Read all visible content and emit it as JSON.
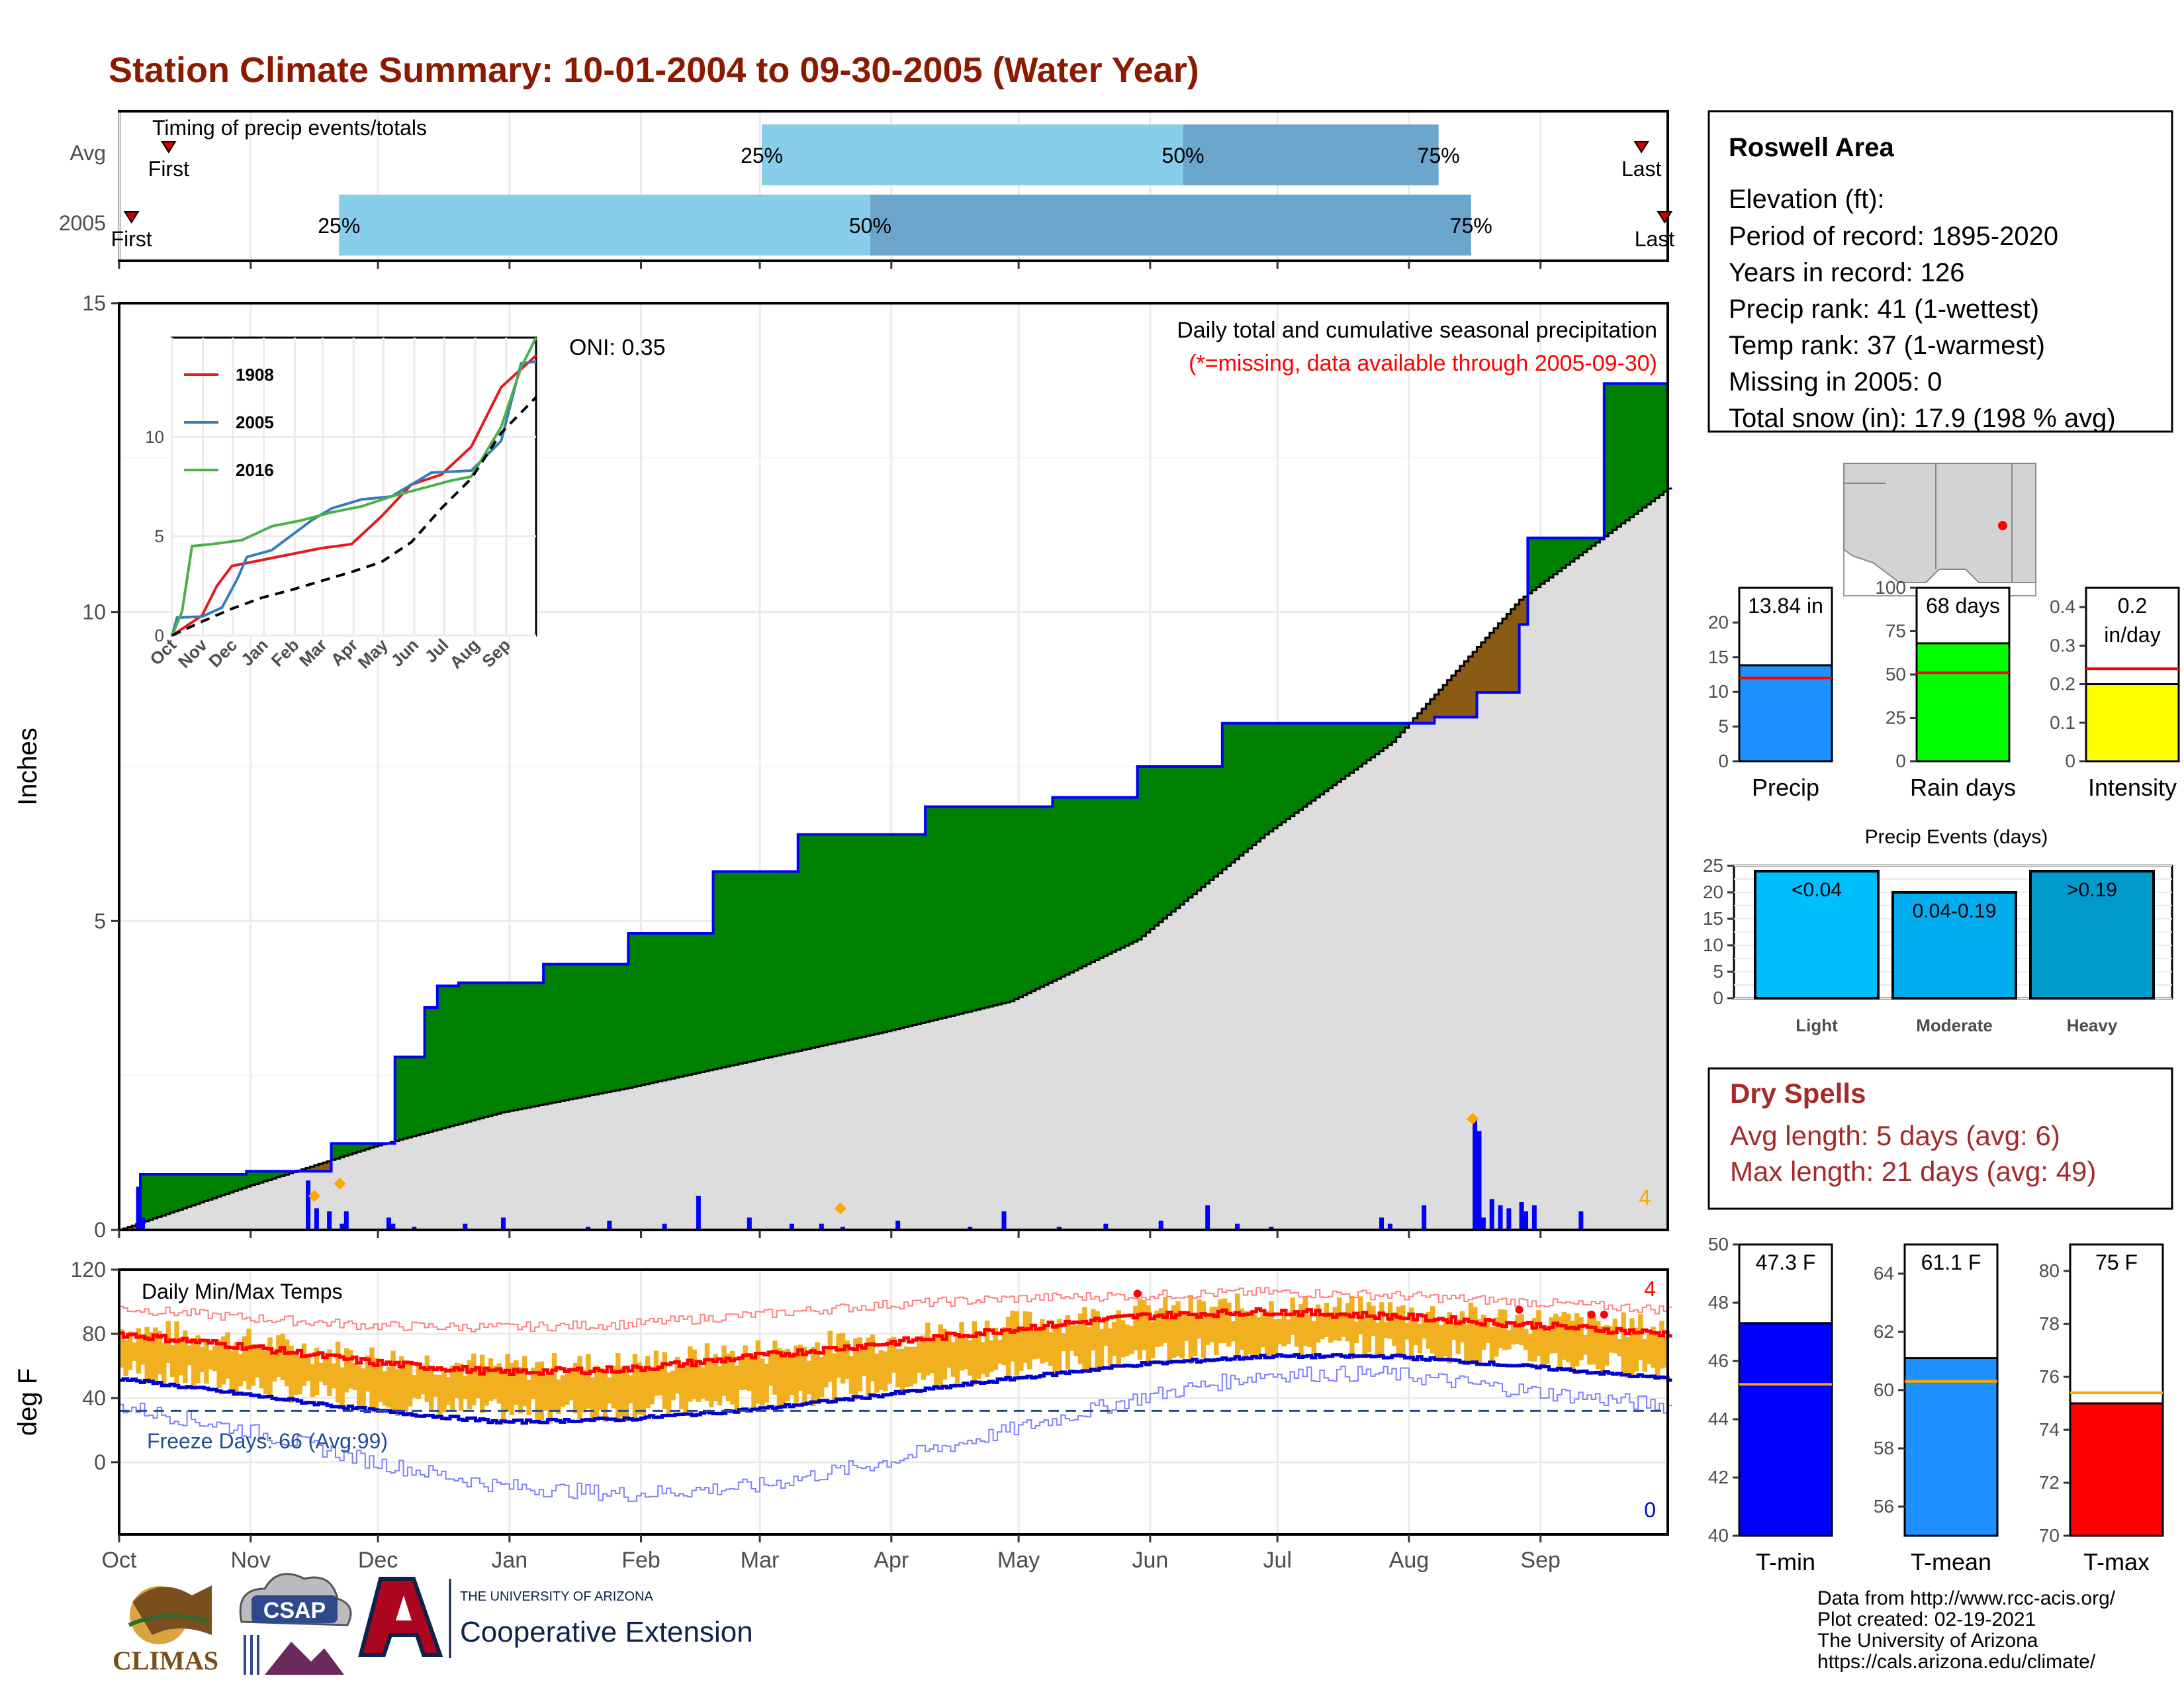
{
  "title": "Station Climate Summary: 10-01-2004 to 09-30-2005 (Water Year)",
  "colors": {
    "title": "#8B1A00",
    "precip_fill": "#008000",
    "deficit_fill": "#8B5A14",
    "avg_fill": "#dddddd",
    "cum_line": "#0000ff",
    "daily_bar": "#0000ff",
    "temp_bar": "#F0B020",
    "max_line": "#ff0000",
    "min_line": "#0000cc",
    "dry_spell_text": "#A52A2A",
    "timing_light": "#87CEEB",
    "timing_dark": "#6CA6CD"
  },
  "timing": {
    "title": "Timing of precip events/totals",
    "rows": [
      {
        "label": "Avg",
        "first": "First",
        "last": "Last",
        "p25": 0.415,
        "p50": 0.687,
        "p75": 0.852,
        "first_pos": 0.032,
        "last_pos": 0.983
      },
      {
        "label": "2005",
        "first": "First",
        "last": "Last",
        "p25": 0.142,
        "p50": 0.485,
        "p75": 0.873,
        "first_pos": 0.008,
        "last_pos": 0.998
      }
    ],
    "pct_labels": [
      "25%",
      "50%",
      "75%"
    ]
  },
  "info": {
    "station": "Roswell Area",
    "lines": [
      "Elevation (ft):",
      "Period of record: 1895-2020",
      "Years in record: 126",
      "Precip rank: 41 (1-wettest)",
      "Temp rank: 37 (1-warmest)",
      "Missing in 2005: 0",
      "Total snow (in): 17.9 (198 % avg)"
    ]
  },
  "main_chart": {
    "ylabel": "Inches",
    "header": "Daily total and cumulative seasonal precipitation",
    "missing_note": "(*=missing, data available through 2005-09-30)",
    "oni": "ONI: 0.35",
    "count_label": "4",
    "ylim": [
      0,
      15
    ],
    "yticks": [
      0,
      5,
      10,
      15
    ]
  },
  "chart_data": [
    {
      "type": "area",
      "name": "cumulative-precip",
      "x_unit": "day of water year (0 = Oct 1)",
      "xlim": [
        0,
        365
      ],
      "ylim": [
        0,
        15
      ],
      "series": [
        {
          "name": "2005 cumulative",
          "x": [
            0,
            5,
            30,
            50,
            65,
            72,
            75,
            80,
            85,
            100,
            120,
            140,
            160,
            190,
            220,
            240,
            260,
            290,
            310,
            320,
            330,
            332,
            350,
            365
          ],
          "y": [
            0,
            0.9,
            0.95,
            1.4,
            2.8,
            3.6,
            3.95,
            4.0,
            4.0,
            4.3,
            4.8,
            5.8,
            6.4,
            6.85,
            7.0,
            7.5,
            8.2,
            8.2,
            8.3,
            8.7,
            9.8,
            11.2,
            13.7,
            13.8
          ]
        },
        {
          "name": "Average cumulative",
          "x": [
            0,
            30,
            60,
            90,
            120,
            150,
            180,
            210,
            240,
            270,
            300,
            330,
            365
          ],
          "y": [
            0,
            0.7,
            1.35,
            1.9,
            2.3,
            2.75,
            3.2,
            3.7,
            4.7,
            6.4,
            7.9,
            10.2,
            12.0
          ]
        }
      ]
    },
    {
      "type": "bar",
      "name": "daily-precip",
      "x": [
        4,
        5,
        44,
        46,
        49,
        52,
        53,
        63,
        64,
        69,
        81,
        90,
        110,
        115,
        128,
        136,
        148,
        158,
        165,
        170,
        183,
        200,
        208,
        221,
        232,
        245,
        256,
        263,
        271,
        297,
        299,
        307,
        319,
        320,
        321,
        323,
        325,
        327,
        330,
        331,
        333,
        344
      ],
      "values": [
        0.7,
        0.2,
        0.8,
        0.35,
        0.3,
        0.1,
        0.3,
        0.2,
        0.1,
        0.05,
        0.1,
        0.2,
        0.05,
        0.15,
        0.1,
        0.55,
        0.2,
        0.1,
        0.1,
        0.05,
        0.15,
        0.05,
        0.3,
        0.05,
        0.1,
        0.15,
        0.4,
        0.1,
        0.05,
        0.2,
        0.1,
        0.4,
        1.8,
        1.6,
        0.2,
        0.5,
        0.4,
        0.35,
        0.45,
        0.3,
        0.4,
        0.3
      ]
    },
    {
      "type": "line",
      "name": "inset-cumulative",
      "xtick_labels": [
        "Oct",
        "Nov",
        "Dec",
        "Jan",
        "Feb",
        "Mar",
        "Apr",
        "May",
        "Jun",
        "Jul",
        "Aug",
        "Sep"
      ],
      "yticks": [
        0,
        5,
        10
      ],
      "ylim": [
        0,
        15
      ],
      "series": [
        {
          "name": "1908",
          "x": [
            0,
            30,
            45,
            60,
            90,
            120,
            150,
            180,
            210,
            240,
            270,
            300,
            330,
            365
          ],
          "y": [
            0,
            1,
            2.5,
            3.5,
            3.8,
            4.1,
            4.4,
            4.6,
            6.0,
            7.6,
            8.1,
            9.5,
            12.5,
            14.1
          ]
        },
        {
          "name": "2005",
          "x": [
            0,
            5,
            30,
            50,
            65,
            75,
            100,
            140,
            160,
            190,
            220,
            260,
            300,
            330,
            350,
            365
          ],
          "y": [
            0,
            0.9,
            0.95,
            1.4,
            2.8,
            3.95,
            4.3,
            5.8,
            6.4,
            6.85,
            7.0,
            8.2,
            8.3,
            9.8,
            13.7,
            13.8
          ]
        },
        {
          "name": "2016",
          "x": [
            0,
            10,
            20,
            40,
            70,
            100,
            130,
            160,
            190,
            220,
            250,
            280,
            300,
            330,
            350,
            365
          ],
          "y": [
            0,
            1.2,
            4.5,
            4.6,
            4.8,
            5.5,
            5.8,
            6.2,
            6.5,
            7.0,
            7.4,
            7.8,
            8.0,
            10.5,
            13.5,
            15
          ]
        },
        {
          "name": "Average",
          "x": [
            0,
            30,
            60,
            90,
            120,
            150,
            180,
            210,
            240,
            270,
            300,
            330,
            365
          ],
          "y": [
            0,
            0.7,
            1.35,
            1.9,
            2.3,
            2.75,
            3.2,
            3.7,
            4.7,
            6.4,
            7.9,
            10.2,
            12.0
          ]
        }
      ]
    },
    {
      "type": "line",
      "name": "daily-temps",
      "title": "Daily Min/Max Temps",
      "ylabel": "deg F",
      "ylim": [
        -45,
        120
      ],
      "yticks": [
        0,
        40,
        80,
        120
      ],
      "xtick_labels": [
        "Oct",
        "Nov",
        "Dec",
        "Jan",
        "Feb",
        "Mar",
        "Apr",
        "May",
        "Jun",
        "Jul",
        "Aug",
        "Sep"
      ],
      "series": [
        {
          "name": "Avg max",
          "x": [
            0,
            30,
            60,
            90,
            120,
            150,
            180,
            210,
            240,
            270,
            300,
            330,
            365
          ],
          "y": [
            80,
            72,
            62,
            56,
            58,
            66,
            74,
            83,
            91,
            94,
            91,
            86,
            80
          ]
        },
        {
          "name": "Avg min",
          "x": [
            0,
            30,
            60,
            90,
            120,
            150,
            180,
            210,
            240,
            270,
            300,
            330,
            365
          ],
          "y": [
            52,
            42,
            32,
            25,
            27,
            33,
            42,
            52,
            61,
            66,
            66,
            60,
            52
          ]
        },
        {
          "name": "Record max",
          "x": [
            0,
            30,
            60,
            90,
            120,
            150,
            180,
            210,
            240,
            270,
            300,
            330,
            365
          ],
          "y": [
            96,
            90,
            85,
            84,
            86,
            92,
            98,
            102,
            104,
            106,
            104,
            100,
            95
          ]
        },
        {
          "name": "Record min",
          "x": [
            0,
            30,
            60,
            90,
            120,
            150,
            180,
            210,
            240,
            270,
            300,
            330,
            365
          ],
          "y": [
            35,
            20,
            0,
            -15,
            -20,
            -15,
            0,
            20,
            40,
            55,
            55,
            45,
            35
          ]
        }
      ],
      "freeze_line": 32,
      "freeze_label": "Freeze Days: 66 (Avg:99)",
      "high_count": "4",
      "low_count": "0"
    },
    {
      "type": "bar",
      "name": "summary-bars",
      "panels": [
        {
          "label": "Precip",
          "value": 13.84,
          "value_label": "13.84 in",
          "avg": 12,
          "ylim": [
            0,
            25
          ],
          "yticks": [
            0,
            5,
            10,
            15,
            20
          ],
          "color": "#1E90FF"
        },
        {
          "label": "Rain days",
          "value": 68,
          "value_label": "68 days",
          "avg": 51,
          "ylim": [
            0,
            100
          ],
          "yticks": [
            0,
            25,
            50,
            75,
            100
          ],
          "color": "#00FF00"
        },
        {
          "label": "Intensity",
          "value": 0.2,
          "value_label_1": "0.2",
          "value_label_2": "in/day",
          "avg": 0.24,
          "ylim": [
            0,
            0.45
          ],
          "yticks": [
            0.0,
            0.1,
            0.2,
            0.3,
            0.4
          ],
          "color": "#FFFF00"
        }
      ]
    },
    {
      "type": "bar",
      "name": "precip-events",
      "title": "Precip Events (days)",
      "categories": [
        "Light",
        "Moderate",
        "Heavy"
      ],
      "bar_labels": [
        "<0.04",
        "0.04-0.19",
        ">0.19"
      ],
      "values": [
        24,
        20,
        24
      ],
      "ylim": [
        0,
        25
      ],
      "yticks": [
        0,
        5,
        10,
        15,
        20,
        25
      ],
      "colors": [
        "#00BFFF",
        "#00AEEF",
        "#009ACD"
      ]
    },
    {
      "type": "bar",
      "name": "temp-bars",
      "panels": [
        {
          "label": "T-min",
          "value": 47.3,
          "value_label": "47.3 F",
          "avg": 45.2,
          "ylim": [
            40,
            50
          ],
          "yticks": [
            40,
            42,
            44,
            46,
            48,
            50
          ],
          "color": "#0000FF"
        },
        {
          "label": "T-mean",
          "value": 61.1,
          "value_label": "61.1 F",
          "avg": 60.3,
          "ylim": [
            55,
            65
          ],
          "yticks": [
            56,
            58,
            60,
            62,
            64
          ],
          "color": "#1E90FF"
        },
        {
          "label": "T-max",
          "value": 75,
          "value_label": "75 F",
          "avg": 75.4,
          "ylim": [
            70,
            81
          ],
          "yticks": [
            70,
            72,
            74,
            76,
            78,
            80
          ],
          "color": "#FF0000"
        }
      ]
    }
  ],
  "dry_spells": {
    "title": "Dry Spells",
    "avg": "Avg length: 5 days (avg: 6)",
    "max": "Max length: 21 days (avg: 49)"
  },
  "footer": {
    "lines": [
      "Data from http://www.rcc-acis.org/",
      "Plot created: 02-19-2021",
      "The University of Arizona",
      "https://cals.arizona.edu/climate/"
    ],
    "logo_climas": "CLIMAS",
    "logo_csap": "CSAP",
    "ua_small": "THE UNIVERSITY OF ARIZONA",
    "ua_large": "Cooperative Extension"
  }
}
